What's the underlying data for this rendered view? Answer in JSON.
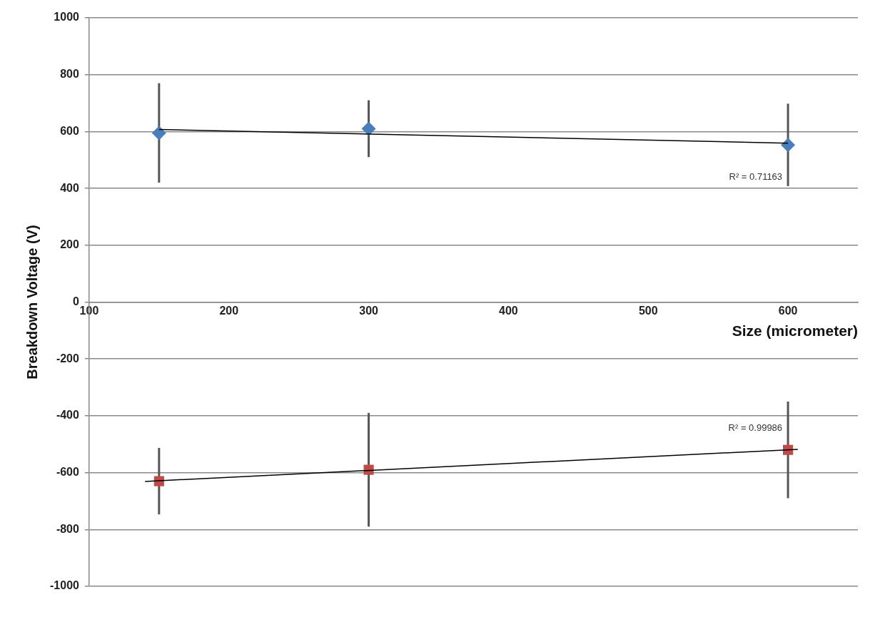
{
  "chart_data": {
    "type": "scatter",
    "xlabel": "Size (micrometer)",
    "ylabel": "Breakdown Voltage (V)",
    "xlim": [
      100,
      650
    ],
    "xticks": [
      100,
      200,
      300,
      400,
      500,
      600
    ],
    "ylim": [
      -1000,
      1000
    ],
    "yticks": [
      -1000,
      -800,
      -600,
      -400,
      -200,
      0,
      200,
      400,
      600,
      800,
      1000
    ],
    "grid": "y",
    "legend": false,
    "series": [
      {
        "color": "#4a7ebb",
        "marker": "diamond",
        "x": [
          150,
          300,
          600
        ],
        "values": [
          595,
          610,
          553
        ],
        "errors": [
          175,
          100,
          145
        ]
      },
      {
        "color": "#be4b48",
        "marker": "square",
        "x": [
          150,
          300,
          600
        ],
        "values": [
          -630,
          -590,
          -520
        ],
        "errors": [
          117,
          200,
          170
        ]
      },
      {
        "type": "line",
        "color": "#000000",
        "marker": "none",
        "x": [
          150,
          600
        ],
        "values": [
          607,
          559
        ]
      },
      {
        "type": "line",
        "color": "#000000",
        "marker": "none",
        "x": [
          140,
          607
        ],
        "values": [
          -631,
          -518
        ]
      }
    ],
    "annotations": [
      "R² = 0.71163",
      "R² = 0.99986"
    ]
  }
}
